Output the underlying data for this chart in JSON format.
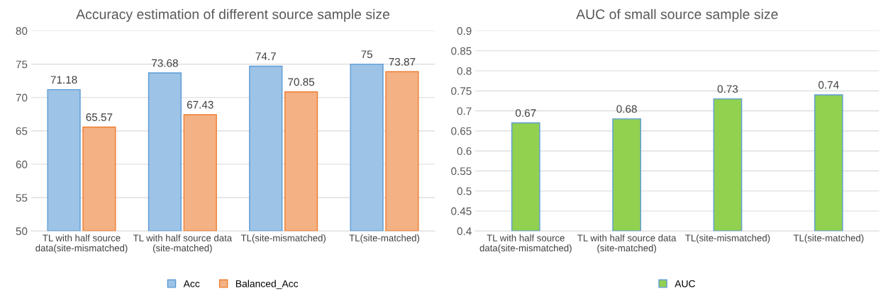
{
  "chart_data": [
    {
      "type": "bar",
      "title": "Accuracy estimation of different source sample size",
      "categories": [
        "TL with half source\ndata(site-mismatched)",
        "TL with half source data\n(site-matched)",
        "TL(site-mismatched)",
        "TL(site-matched)"
      ],
      "series": [
        {
          "name": "Acc",
          "color": "#9dc3e6",
          "values": [
            71.18,
            73.68,
            74.7,
            75
          ]
        },
        {
          "name": "Balanced_Acc",
          "color": "#f4b183",
          "values": [
            65.57,
            67.43,
            70.85,
            73.87
          ]
        }
      ],
      "ylim": [
        50,
        80
      ],
      "yticks": [
        50,
        55,
        60,
        65,
        70,
        75,
        80
      ],
      "grid": "y",
      "legend": "bottom",
      "data_labels": true
    },
    {
      "type": "bar",
      "title": "AUC of small source sample size",
      "categories": [
        "TL with half source\ndata(site-mismatched)",
        "TL with half source data\n(site-matched)",
        "TL(site-mismatched)",
        "TL(site-matched)"
      ],
      "series": [
        {
          "name": "AUC",
          "color": "#92d050",
          "values": [
            0.67,
            0.68,
            0.73,
            0.74
          ]
        }
      ],
      "ylim": [
        0.4,
        0.9
      ],
      "yticks": [
        0.4,
        0.45,
        0.5,
        0.55,
        0.6,
        0.65,
        0.7,
        0.75,
        0.8,
        0.85,
        0.9
      ],
      "grid": "y",
      "legend": "bottom",
      "data_labels": true
    }
  ]
}
